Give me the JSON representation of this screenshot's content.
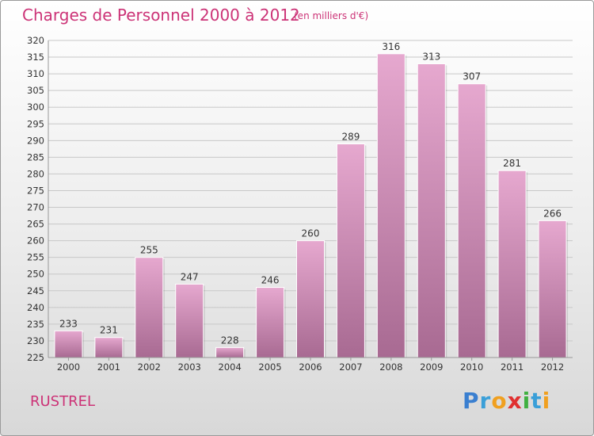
{
  "title": "Charges de Personnel 2000 à 2012",
  "subtitle": "(en milliers d'€)",
  "commune": "RUSTREL",
  "logo": {
    "text": "Proxiti",
    "letters": [
      {
        "ch": "P",
        "color": "#3a7fd0"
      },
      {
        "ch": "r",
        "color": "#3a9fd8"
      },
      {
        "ch": "o",
        "color": "#f0a020"
      },
      {
        "ch": "x",
        "color": "#e03030"
      },
      {
        "ch": "i",
        "color": "#40b040"
      },
      {
        "ch": "t",
        "color": "#3a9fd8"
      },
      {
        "ch": "i",
        "color": "#f0a020"
      }
    ]
  },
  "colors": {
    "title": "#cc3377",
    "bar_top": "#e6a8cf",
    "bar_bottom": "#a86a92",
    "grid": "#c8c8c8",
    "axis_text": "#333333"
  },
  "chart_data": {
    "type": "bar",
    "categories": [
      "2000",
      "2001",
      "2002",
      "2003",
      "2004",
      "2005",
      "2006",
      "2007",
      "2008",
      "2009",
      "2010",
      "2011",
      "2012"
    ],
    "values": [
      233,
      231,
      255,
      247,
      228,
      246,
      260,
      289,
      316,
      313,
      307,
      281,
      266
    ],
    "ylim": [
      225,
      320
    ],
    "yticks": [
      225,
      230,
      235,
      240,
      245,
      250,
      255,
      260,
      265,
      270,
      275,
      280,
      285,
      290,
      295,
      300,
      305,
      310,
      315,
      320
    ],
    "grid": true
  }
}
